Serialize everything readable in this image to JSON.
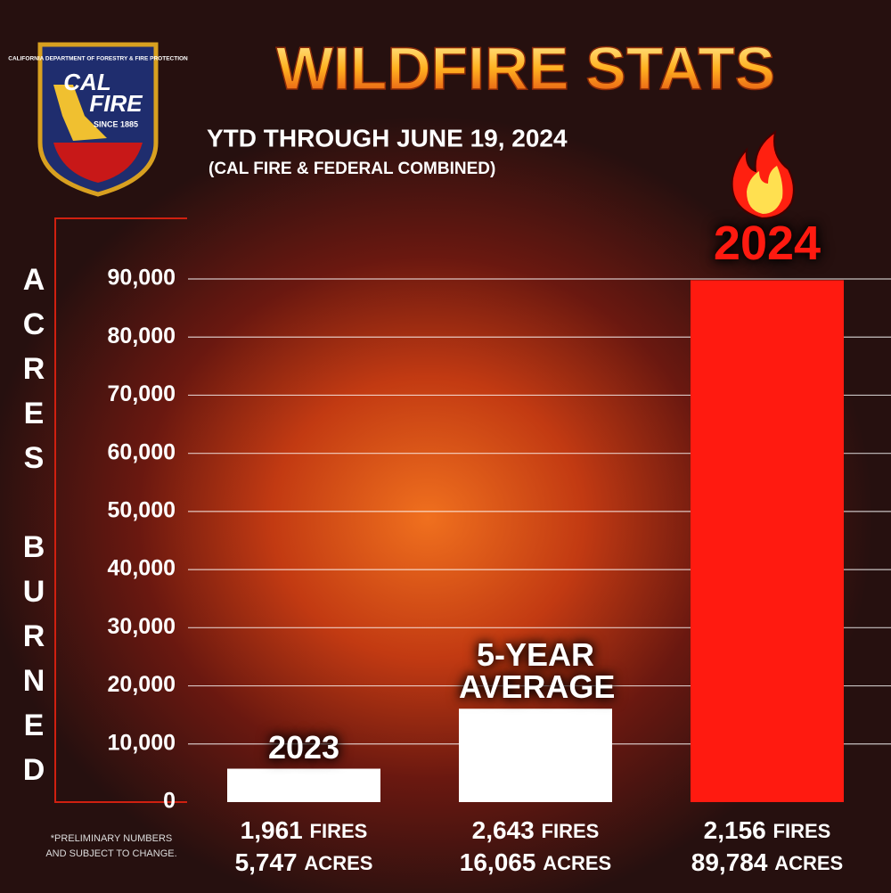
{
  "logo": {
    "arc_text": "CALIFORNIA DEPARTMENT OF FORESTRY & FIRE PROTECTION",
    "line1": "CAL",
    "line2": "FIRE",
    "since": "SINCE 1885"
  },
  "chart_data": {
    "type": "bar",
    "title": "WILDFIRE STATS",
    "subtitle": "YTD THROUGH JUNE 19, 2024",
    "subtitle2": "(CAL FIRE & FEDERAL COMBINED)",
    "y_label": "ACRES BURNED",
    "categories": [
      "2023",
      "5-YEAR AVERAGE",
      "2024"
    ],
    "values": [
      5747,
      16065,
      89784
    ],
    "value_labels": [
      "5,747",
      "16,065",
      "89,784"
    ],
    "value_unit": "ACRES",
    "fires": [
      "1,961",
      "2,643",
      "2,156"
    ],
    "fires_unit": "FIRES",
    "colors": [
      "#ffffff",
      "#ffffff",
      "#ff1a10"
    ],
    "ylim": [
      0,
      100000
    ],
    "yticks": [
      0,
      {
        "value": 10000,
        "label": "10,000"
      },
      {
        "value": 20000,
        "label": "20,000"
      },
      {
        "value": 30000,
        "label": "30,000"
      },
      {
        "value": 40000,
        "label": "40,000"
      },
      {
        "value": 50000,
        "label": "50,000"
      },
      {
        "value": 60000,
        "label": "60,000"
      },
      {
        "value": 70000,
        "label": "70,000"
      },
      {
        "value": 80000,
        "label": "80,000"
      },
      {
        "value": 90000,
        "label": "90,000"
      }
    ],
    "grid": true,
    "footnote": "*PRELIMINARY NUMBERS AND SUBJECT TO CHANGE."
  }
}
